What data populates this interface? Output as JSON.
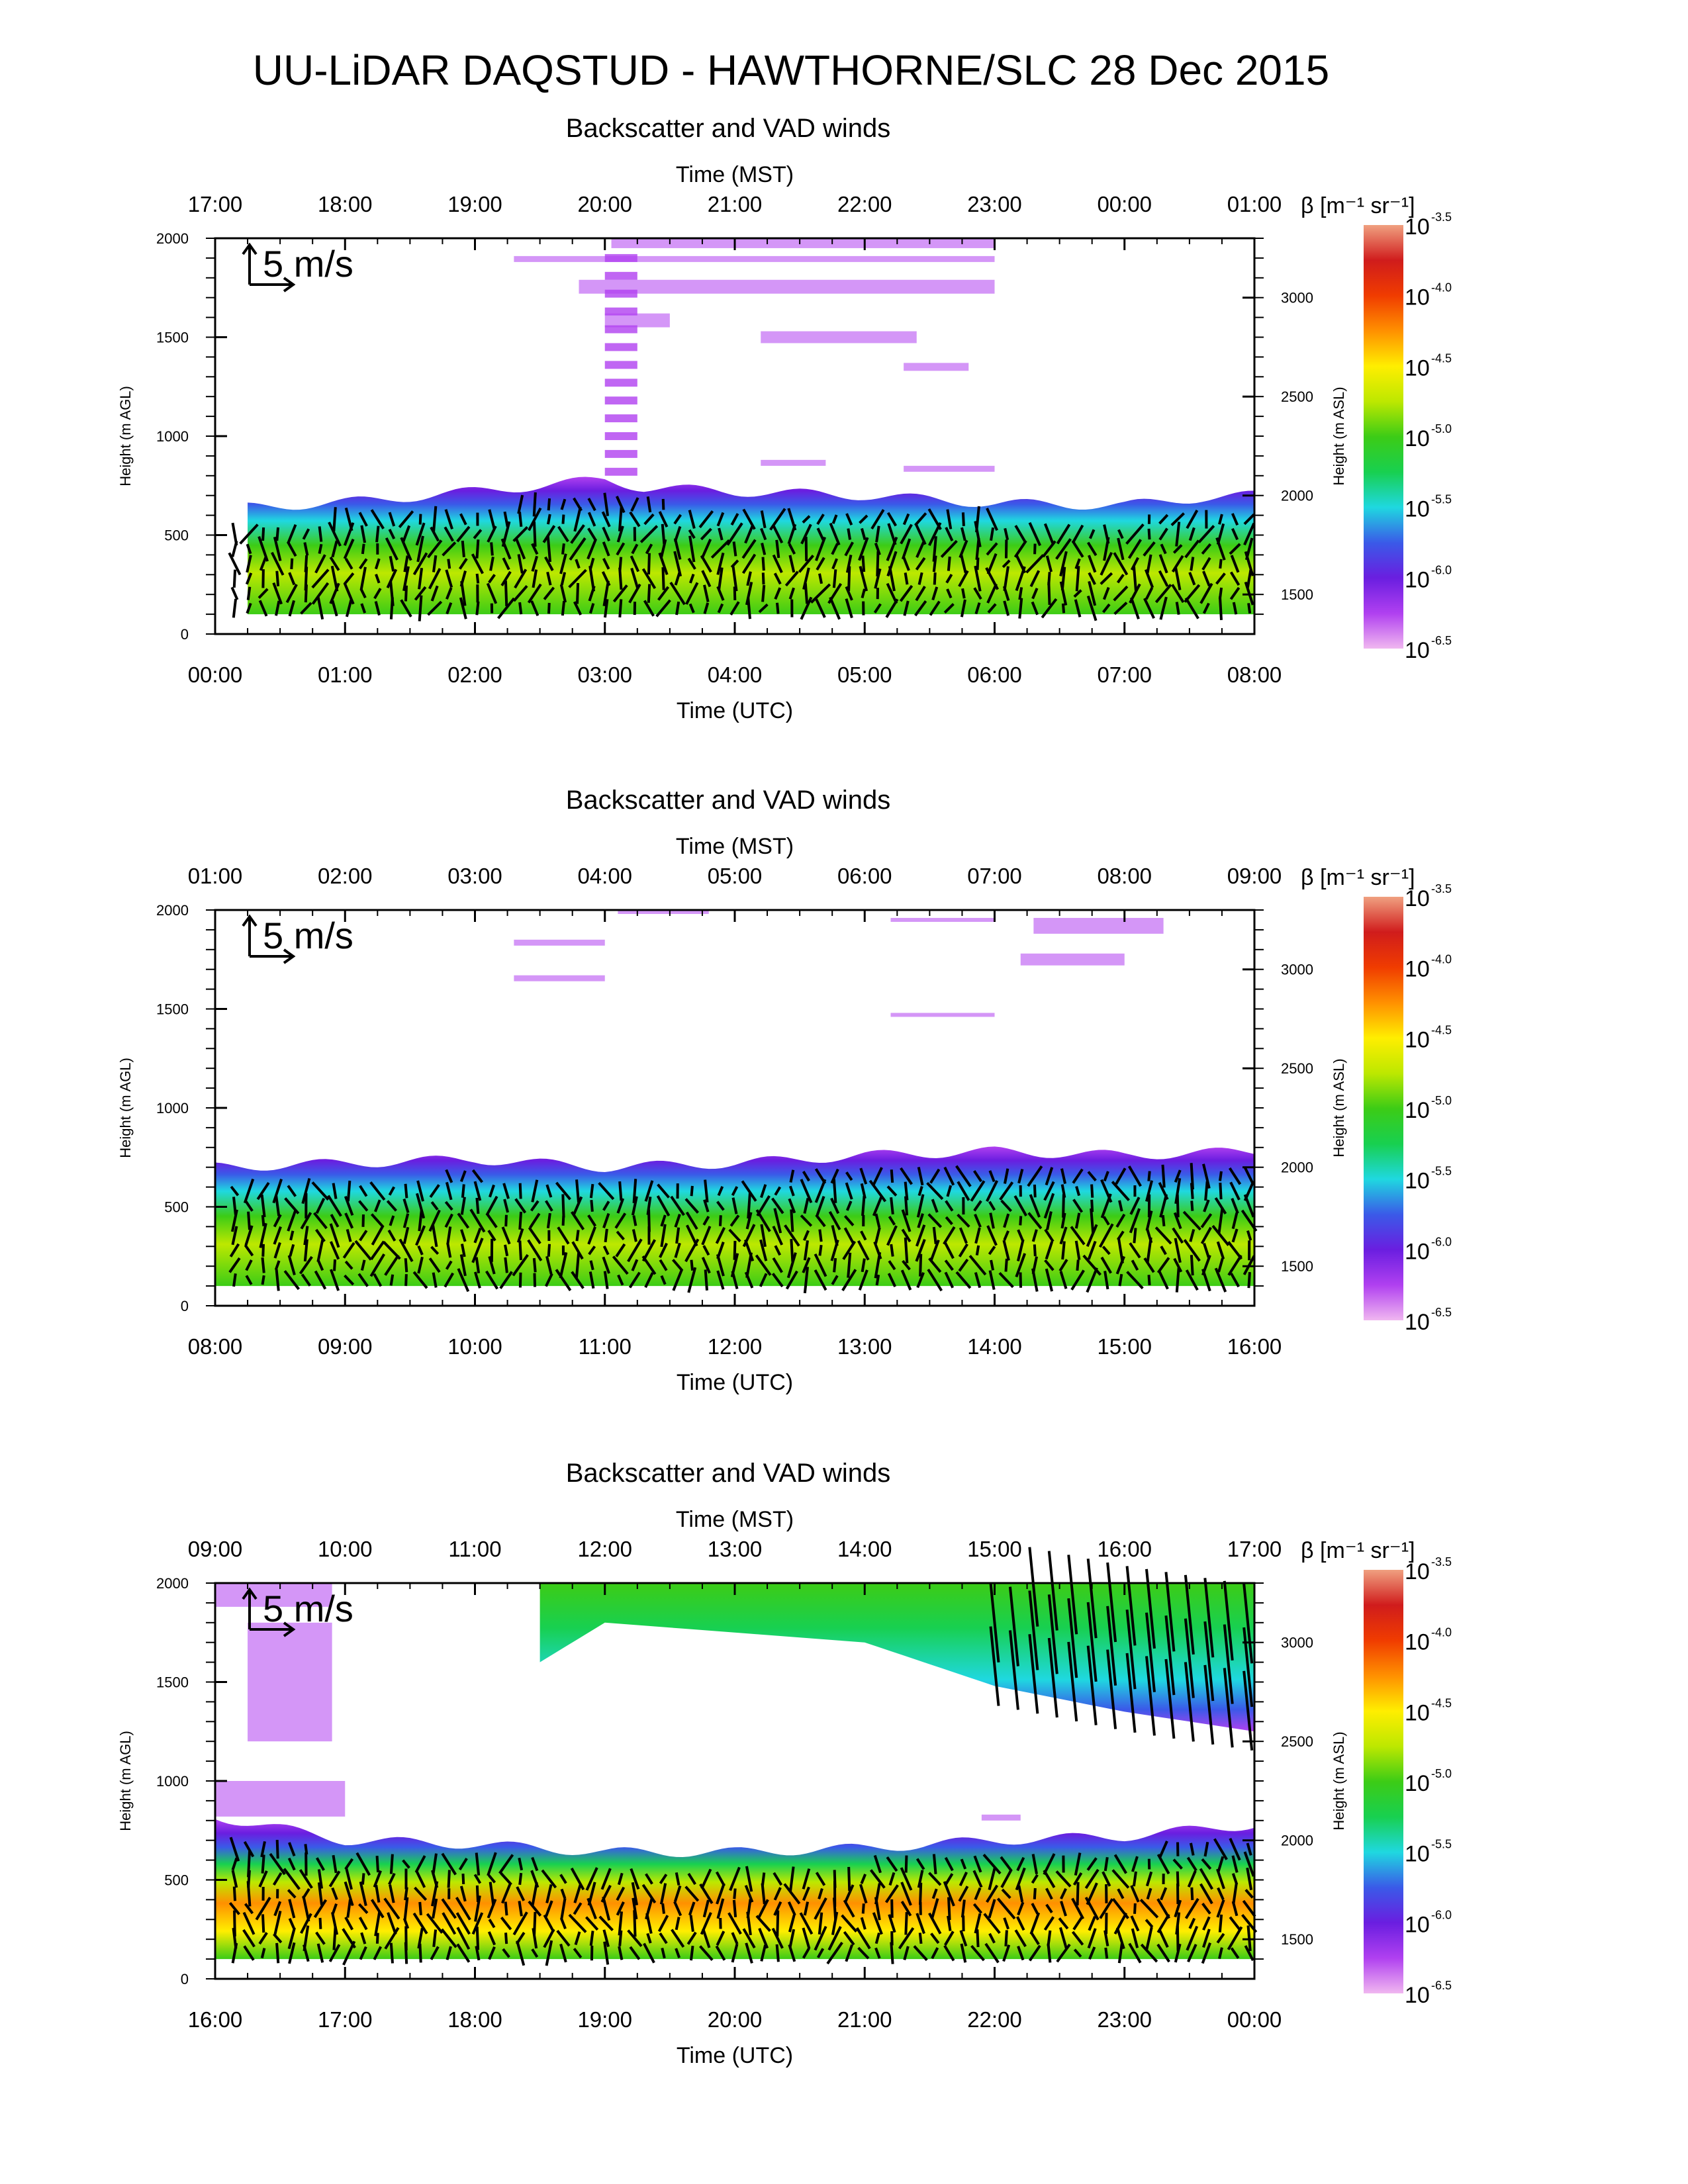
{
  "figure": {
    "title": "UU-LiDAR DAQSTUD - HAWTHORNE/SLC 28 Dec 2015"
  },
  "colors": {
    "colormap": [
      "#f0b7f0",
      "#b040f0",
      "#6a1ee0",
      "#3a5ae8",
      "#1fd8e0",
      "#18d050",
      "#3ccc16",
      "#bde800",
      "#ffee00",
      "#ff9000",
      "#f03c00",
      "#d01c1c",
      "#f0a080"
    ],
    "arrow": "#000000",
    "axis": "#000000"
  },
  "chart_data": [
    {
      "type": "heatmap",
      "title": "Backscatter and VAD winds",
      "xlabel": "Time (UTC)",
      "top_xlabel": "Time (MST)",
      "ylabel": "Height (m AGL)",
      "right_ylabel": "Height (m ASL)",
      "colorbar_label": "β [m⁻¹ sr⁻¹]",
      "x_ticks": [
        "00:00",
        "01:00",
        "02:00",
        "03:00",
        "04:00",
        "05:00",
        "06:00",
        "07:00",
        "08:00"
      ],
      "top_x_ticks": [
        "17:00",
        "18:00",
        "19:00",
        "20:00",
        "21:00",
        "22:00",
        "23:00",
        "00:00",
        "01:00"
      ],
      "y_ticks": [
        0,
        500,
        1000,
        1500,
        2000
      ],
      "right_y_ticks": [
        1500,
        2000,
        2500,
        3000
      ],
      "xlim_hours": [
        0,
        8
      ],
      "ylim": [
        0,
        2000
      ],
      "wind_reference": "5 m/s",
      "aerosol_layer_top_m": [
        [
          0.25,
          640
        ],
        [
          1,
          665
        ],
        [
          2,
          720
        ],
        [
          3,
          780
        ],
        [
          3.3,
          740
        ],
        [
          4,
          720
        ],
        [
          5,
          700
        ],
        [
          6,
          660
        ],
        [
          7,
          650
        ],
        [
          7.6,
          690
        ],
        [
          8,
          700
        ]
      ],
      "cloud_present_hours": [
        3.0,
        6.0
      ],
      "colorbar_ticks": [
        "-3.5",
        "-4.0",
        "-4.5",
        "-5.0",
        "-5.5",
        "-6.0",
        "-6.5"
      ],
      "colorbar_base": "10"
    },
    {
      "type": "heatmap",
      "title": "Backscatter and VAD winds",
      "xlabel": "Time (UTC)",
      "top_xlabel": "Time (MST)",
      "ylabel": "Height (m AGL)",
      "right_ylabel": "Height (m ASL)",
      "colorbar_label": "β [m⁻¹ sr⁻¹]",
      "x_ticks": [
        "08:00",
        "09:00",
        "10:00",
        "11:00",
        "12:00",
        "13:00",
        "14:00",
        "15:00",
        "16:00"
      ],
      "top_x_ticks": [
        "01:00",
        "02:00",
        "03:00",
        "04:00",
        "05:00",
        "06:00",
        "07:00",
        "08:00",
        "09:00"
      ],
      "y_ticks": [
        0,
        500,
        1000,
        1500,
        2000
      ],
      "right_y_ticks": [
        1500,
        2000,
        2500,
        3000
      ],
      "xlim_hours": [
        8,
        16
      ],
      "ylim": [
        0,
        2000
      ],
      "wind_reference": "5 m/s",
      "aerosol_layer_top_m": [
        [
          8,
          700
        ],
        [
          9,
          720
        ],
        [
          10,
          740
        ],
        [
          11,
          700
        ],
        [
          12,
          720
        ],
        [
          13,
          760
        ],
        [
          14,
          780
        ],
        [
          15,
          760
        ],
        [
          16,
          780
        ]
      ],
      "colorbar_ticks": [
        "-3.5",
        "-4.0",
        "-4.5",
        "-5.0",
        "-5.5",
        "-6.0",
        "-6.5"
      ],
      "colorbar_base": "10"
    },
    {
      "type": "heatmap",
      "title": "Backscatter and VAD winds",
      "xlabel": "Time (UTC)",
      "top_xlabel": "Time (MST)",
      "ylabel": "Height (m AGL)",
      "right_ylabel": "Height (m ASL)",
      "colorbar_label": "β [m⁻¹ sr⁻¹]",
      "x_ticks": [
        "16:00",
        "17:00",
        "18:00",
        "19:00",
        "20:00",
        "21:00",
        "22:00",
        "23:00",
        "00:00"
      ],
      "top_x_ticks": [
        "09:00",
        "10:00",
        "11:00",
        "12:00",
        "13:00",
        "14:00",
        "15:00",
        "16:00",
        "17:00"
      ],
      "y_ticks": [
        0,
        500,
        1000,
        1500,
        2000
      ],
      "right_y_ticks": [
        1500,
        2000,
        2500,
        3000
      ],
      "xlim_hours": [
        16,
        24
      ],
      "ylim": [
        0,
        2000
      ],
      "wind_reference": "5 m/s",
      "aerosol_layer_top_m": [
        [
          16,
          820
        ],
        [
          17,
          700
        ],
        [
          18,
          680
        ],
        [
          19,
          640
        ],
        [
          20,
          640
        ],
        [
          21,
          660
        ],
        [
          22,
          700
        ],
        [
          23,
          720
        ],
        [
          24,
          780
        ]
      ],
      "upper_cloud_layer": {
        "start_hour": 18.5,
        "end_hour": 24,
        "top_m": 2000,
        "base_m": [
          [
            18.5,
            1600
          ],
          [
            19,
            1800
          ],
          [
            20,
            1750
          ],
          [
            21,
            1700
          ],
          [
            22,
            1480
          ],
          [
            23,
            1350
          ],
          [
            24,
            1250
          ]
        ]
      },
      "colorbar_ticks": [
        "-3.5",
        "-4.0",
        "-4.5",
        "-5.0",
        "-5.5",
        "-6.0",
        "-6.5"
      ],
      "colorbar_base": "10"
    }
  ]
}
